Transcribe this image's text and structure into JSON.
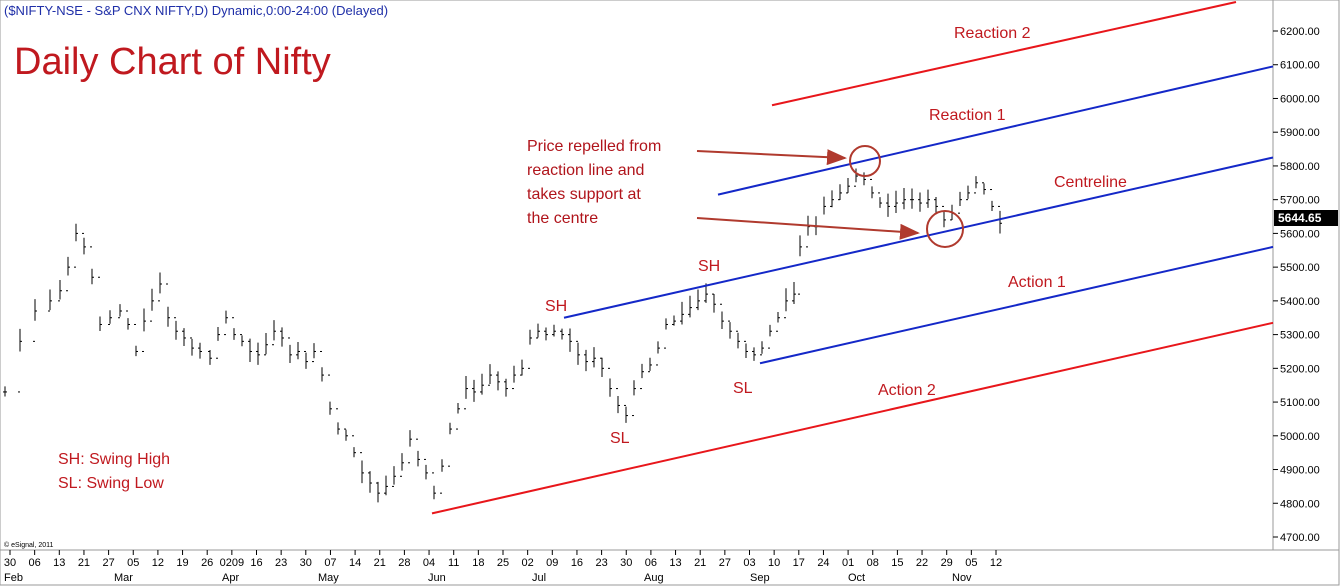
{
  "header": {
    "symbol_line": "($NIFTY-NSE - S&P CNX NIFTY,D) Dynamic,0:00-24:00 (Delayed)"
  },
  "title": "Daily Chart of Nifty",
  "copyright": "© eSignal, 2011",
  "colors": {
    "red_line": "#e8161b",
    "blue_line": "#1428c8",
    "annotation": "#c0191f",
    "header": "#1f2fa8",
    "arrow": "#b03a2e"
  },
  "legend_notes": {
    "sh": "SH: Swing High",
    "sl": "SL: Swing Low"
  },
  "annotations": {
    "note_lines": [
      "Price repelled from",
      "reaction line and",
      "takes support at",
      "the centre"
    ],
    "sh1": "SH",
    "sh2": "SH",
    "sl1": "SL",
    "sl2": "SL"
  },
  "last_price": "5644.65",
  "chart_data": {
    "type": "ohlc",
    "title": "Daily Chart of Nifty",
    "y_ticks": [
      4700,
      4800,
      4900,
      5000,
      5100,
      5200,
      5300,
      5400,
      5500,
      5600,
      5700,
      5800,
      5900,
      6000,
      6100,
      6200
    ],
    "y_tick_labels": [
      "4700.00",
      "4800.00",
      "4900.00",
      "5000.00",
      "5100.00",
      "5200.00",
      "5300.00",
      "5400.00",
      "5500.00",
      "5600.00",
      "5700.00",
      "5800.00",
      "5900.00",
      "6000.00",
      "6100.00",
      "6200.00"
    ],
    "ylim": [
      4670,
      6270
    ],
    "x_tick_labels": [
      "30",
      "06",
      "13",
      "21",
      "27",
      "05",
      "12",
      "19",
      "26",
      "0209",
      "16",
      "23",
      "30",
      "07",
      "14",
      "21",
      "28",
      "04",
      "11",
      "18",
      "25",
      "02",
      "09",
      "16",
      "23",
      "30",
      "06",
      "13",
      "21",
      "27",
      "03",
      "10",
      "17",
      "24",
      "01",
      "08",
      "15",
      "22",
      "29",
      "05",
      "12"
    ],
    "months": [
      "Feb",
      "Mar",
      "Apr",
      "May",
      "Jun",
      "Jul",
      "Aug",
      "Sep",
      "Oct",
      "Nov"
    ],
    "trend_lines": [
      {
        "name": "Reaction 2",
        "start": [
          "Sep 20",
          5980
        ],
        "end": [
          "Nov 15",
          6270
        ]
      },
      {
        "name": "Reaction 1",
        "start": [
          "Sep 27",
          5715
        ],
        "end": [
          "Nov 17",
          6095
        ]
      },
      {
        "name": "Centreline",
        "start": [
          "Jul 11",
          5350
        ],
        "end": [
          "Nov 17",
          5825
        ]
      },
      {
        "name": "Action 1",
        "start": [
          "Sep 06",
          5215
        ],
        "end": [
          "Nov 17",
          5560
        ]
      },
      {
        "name": "Action 2",
        "start": [
          "Jun 06",
          4770
        ],
        "end": [
          "Nov 17",
          5335
        ]
      }
    ],
    "highlights": [
      {
        "label": "Reaction 1 touch",
        "date": "Oct 05",
        "price": 5815
      },
      {
        "label": "Centreline support",
        "date": "Oct 27",
        "price": 5610
      }
    ],
    "swing_points": [
      {
        "label": "SH",
        "date": "Jul 08",
        "price": 5345
      },
      {
        "label": "SL",
        "date": "Aug 01",
        "price": 5040
      },
      {
        "label": "SH",
        "date": "Aug 22",
        "price": 5440
      },
      {
        "label": "SL",
        "date": "Sep 06",
        "price": 5220
      }
    ],
    "grid": false
  }
}
